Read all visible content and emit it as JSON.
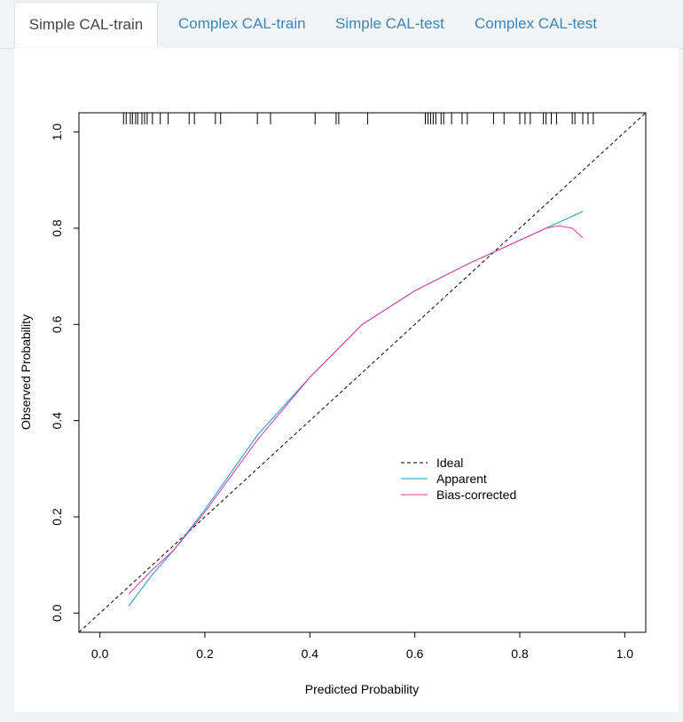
{
  "tabs": [
    {
      "label": "Simple CAL-train",
      "active": true
    },
    {
      "label": "Complex CAL-train",
      "active": false
    },
    {
      "label": "Simple CAL-test",
      "active": false
    },
    {
      "label": "Complex CAL-test",
      "active": false
    }
  ],
  "chart_data": {
    "type": "line",
    "title": "",
    "xlabel": "Predicted Probability",
    "ylabel": "Observed  Probability",
    "xlim": [
      -0.04,
      1.04
    ],
    "ylim": [
      -0.04,
      1.04
    ],
    "xticks": [
      "0.0",
      "0.2",
      "0.4",
      "0.6",
      "0.8",
      "1.0"
    ],
    "yticks": [
      "0.0",
      "0.2",
      "0.4",
      "0.6",
      "0.8",
      "1.0"
    ],
    "legend": [
      "Ideal",
      "Apparent",
      "Bias-corrected"
    ],
    "legend_position": "lower-right",
    "series": [
      {
        "name": "Ideal",
        "color": "#000000",
        "dash": true,
        "x": [
          -0.04,
          1.04
        ],
        "y": [
          -0.04,
          1.04
        ]
      },
      {
        "name": "Apparent",
        "color": "#1a9ebd",
        "dash": false,
        "x": [
          0.055,
          0.1,
          0.14,
          0.2,
          0.3,
          0.4,
          0.5,
          0.6,
          0.7,
          0.75,
          0.8,
          0.85,
          0.9,
          0.92
        ],
        "y": [
          0.015,
          0.08,
          0.13,
          0.215,
          0.37,
          0.49,
          0.6,
          0.67,
          0.725,
          0.75,
          0.775,
          0.8,
          0.825,
          0.835
        ]
      },
      {
        "name": "Bias-corrected",
        "color": "#d63aa8",
        "dash": false,
        "x": [
          0.055,
          0.1,
          0.14,
          0.2,
          0.3,
          0.4,
          0.5,
          0.6,
          0.7,
          0.75,
          0.8,
          0.85,
          0.875,
          0.9,
          0.92
        ],
        "y": [
          0.04,
          0.09,
          0.13,
          0.21,
          0.36,
          0.49,
          0.6,
          0.67,
          0.725,
          0.75,
          0.775,
          0.8,
          0.805,
          0.8,
          0.78
        ]
      }
    ],
    "rug": [
      0.045,
      0.05,
      0.058,
      0.062,
      0.068,
      0.072,
      0.08,
      0.085,
      0.09,
      0.1,
      0.115,
      0.13,
      0.17,
      0.18,
      0.22,
      0.23,
      0.3,
      0.325,
      0.41,
      0.45,
      0.455,
      0.51,
      0.62,
      0.625,
      0.63,
      0.635,
      0.64,
      0.65,
      0.655,
      0.67,
      0.69,
      0.7,
      0.75,
      0.77,
      0.8,
      0.81,
      0.82,
      0.845,
      0.85,
      0.86,
      0.87,
      0.9,
      0.905,
      0.92,
      0.93,
      0.94
    ]
  }
}
